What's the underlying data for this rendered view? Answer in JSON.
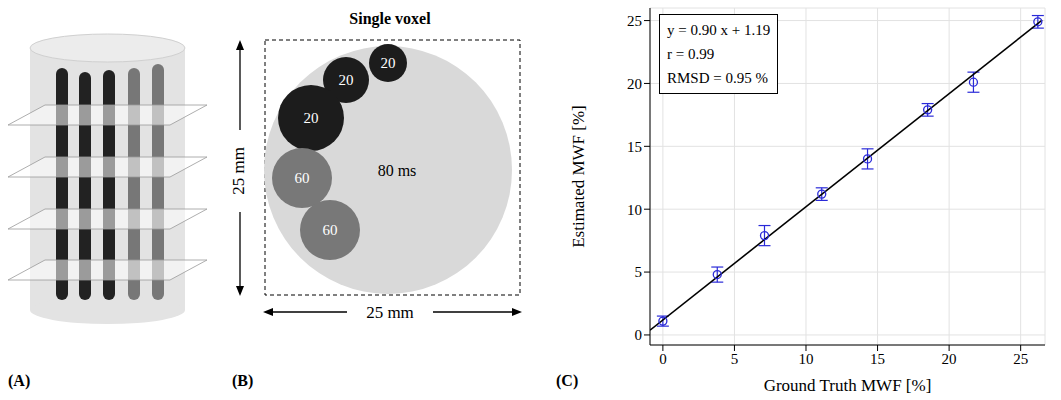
{
  "chart_data": {
    "type": "scatter",
    "x": [
      0,
      3.8,
      7.1,
      11.1,
      14.3,
      18.5,
      21.7,
      26.2
    ],
    "values": [
      1.1,
      4.8,
      7.9,
      11.2,
      14.0,
      17.9,
      20.1,
      24.9
    ],
    "errors": [
      0.4,
      0.6,
      0.8,
      0.5,
      0.8,
      0.5,
      0.8,
      0.5
    ],
    "color": "#2a2ad8",
    "marker": "open_circle",
    "fit_line": {
      "x": [
        -0.9,
        26.5
      ],
      "y": [
        0.38,
        25.04
      ],
      "color": "#000000"
    },
    "xlabel": "Ground Truth MWF [%]",
    "ylabel": "Estimated MWF [%]",
    "xlim": [
      -0.9,
      26.7
    ],
    "ylim": [
      -0.8,
      26
    ],
    "xticks": [
      0,
      5,
      10,
      15,
      20,
      25
    ],
    "yticks": [
      0,
      5,
      10,
      15,
      20,
      25
    ],
    "grid": true,
    "annotations": [
      "y = 0.90 x + 1.19",
      "r = 0.99",
      "RMSD = 0.95 %"
    ]
  },
  "diagram": {
    "panel_labels": [
      "(A)",
      "(B)",
      "(C)"
    ],
    "voxel": {
      "title": "Single voxel",
      "height_label": "25 mm",
      "width_label": "25 mm",
      "background_label": "80 ms",
      "background_color": "#d9d9d9",
      "compartments": [
        {
          "label": "20",
          "color": "#1c1c1c"
        },
        {
          "label": "20",
          "color": "#1c1c1c"
        },
        {
          "label": "20",
          "color": "#1c1c1c"
        },
        {
          "label": "60",
          "color": "#787878"
        },
        {
          "label": "60",
          "color": "#787878"
        }
      ]
    }
  }
}
